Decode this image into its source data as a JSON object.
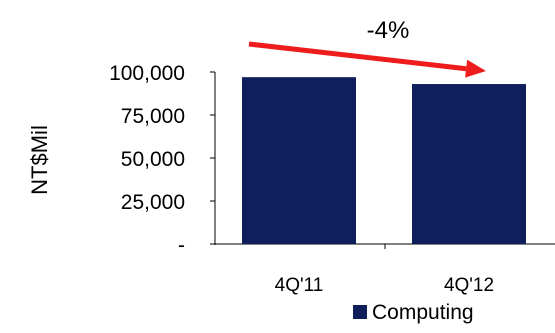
{
  "chart_data": {
    "type": "bar",
    "categories": [
      "4Q'11",
      "4Q'12"
    ],
    "series": [
      {
        "name": "Computing",
        "values": [
          97000,
          93000
        ]
      }
    ],
    "ylabel": "NT$Mil",
    "ylim": [
      0,
      100000
    ],
    "yticks": [
      0,
      25000,
      50000,
      75000,
      100000
    ],
    "ytick_labels": [
      "-",
      "25,000",
      "50,000",
      "75,000",
      "100,000"
    ],
    "grid": false,
    "legend": {
      "position": "bottom"
    },
    "annotation": {
      "text": "-4%",
      "type": "arrow",
      "from_category": "4Q'11",
      "to_category": "4Q'12"
    },
    "colors": {
      "bar": "#0F1F5C",
      "arrow": "#EE1C1C",
      "axis": "#000000"
    }
  }
}
